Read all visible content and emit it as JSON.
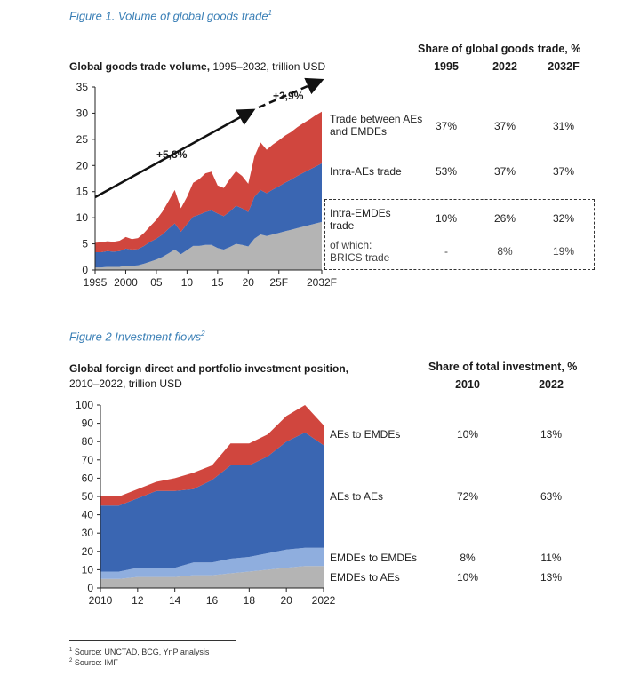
{
  "figure1": {
    "title": "Figure 1. Volume of global goods trade",
    "title_sup": "1",
    "chart_title_bold": "Global goods trade volume,",
    "chart_title_rest": " 1995–2032, trillion USD",
    "share_header": "Share of global goods trade, %",
    "columns": [
      "1995",
      "2022",
      "2032F"
    ],
    "rows": [
      {
        "label": "Trade between AEs and EMDEs",
        "values": [
          "37%",
          "37%",
          "31%"
        ]
      },
      {
        "label": "Intra-AEs trade",
        "values": [
          "53%",
          "37%",
          "37%"
        ]
      },
      {
        "label": "Intra-EMDEs trade",
        "values": [
          "10%",
          "26%",
          "32%"
        ]
      },
      {
        "label": "of which: BRICS trade",
        "values": [
          "-",
          "8%",
          "19%"
        ]
      }
    ],
    "annotations": {
      "growth_1": "+5,8%",
      "growth_2": "+2,9%"
    }
  },
  "figure2": {
    "title": "Figure 2 Investment flows",
    "title_sup": "2",
    "chart_title_bold": "Global foreign direct and portfolio investment position,",
    "chart_title_rest": "2010–2022, trillion USD",
    "share_header": "Share of total investment, %",
    "columns": [
      "2010",
      "2022"
    ],
    "rows": [
      {
        "label": "AEs to EMDEs",
        "values": [
          "10%",
          "13%"
        ]
      },
      {
        "label": "AEs to AEs",
        "values": [
          "72%",
          "63%"
        ]
      },
      {
        "label": "EMDEs to EMDEs",
        "values": [
          "8%",
          "11%"
        ]
      },
      {
        "label": "EMDEs to AEs",
        "values": [
          "10%",
          "13%"
        ]
      }
    ]
  },
  "footnotes": [
    {
      "sup": "1",
      "text": " Source: UNCTAD, BCG, YnP analysis"
    },
    {
      "sup": "2",
      "text": " Source: IMF"
    }
  ],
  "colors": {
    "gray": "#b4b4b4",
    "blue": "#3a66b2",
    "red": "#d0463e",
    "light_blue": "#8faede",
    "accent": "#3a7fb6"
  },
  "chart_data": [
    {
      "type": "area",
      "stacked": true,
      "x": [
        1995,
        1996,
        1997,
        1998,
        1999,
        2000,
        2001,
        2002,
        2003,
        2004,
        2005,
        2006,
        2007,
        2008,
        2009,
        2010,
        2011,
        2012,
        2013,
        2014,
        2015,
        2016,
        2017,
        2018,
        2019,
        2020,
        2021,
        2022,
        2023,
        2024,
        2025,
        2026,
        2027,
        2028,
        2029,
        2030,
        2031,
        2032
      ],
      "xticks": [
        1995,
        2000,
        2005,
        2010,
        2015,
        2020,
        2025,
        2032
      ],
      "xtick_labels": [
        "1995",
        "2000",
        "05",
        "10",
        "15",
        "20",
        "25F",
        "2032F"
      ],
      "ylim": [
        0,
        35
      ],
      "yticks": [
        0,
        5,
        10,
        15,
        20,
        25,
        30,
        35
      ],
      "series": [
        {
          "color": "#b4b4b4",
          "values": [
            0.5,
            0.5,
            0.6,
            0.6,
            0.6,
            0.8,
            0.8,
            0.9,
            1.2,
            1.6,
            2.0,
            2.5,
            3.2,
            3.9,
            3.0,
            3.8,
            4.6,
            4.6,
            4.8,
            4.8,
            4.2,
            3.9,
            4.4,
            5.0,
            4.8,
            4.5,
            6.0,
            6.8,
            6.5,
            6.8,
            7.1,
            7.4,
            7.7,
            8.0,
            8.3,
            8.6,
            8.9,
            9.2
          ]
        },
        {
          "color": "#3a66b2",
          "values": [
            2.9,
            2.9,
            3.0,
            2.9,
            3.0,
            3.3,
            3.1,
            3.1,
            3.4,
            3.8,
            4.0,
            4.3,
            4.7,
            5.0,
            4.3,
            5.0,
            5.6,
            6.0,
            6.3,
            6.6,
            6.6,
            6.4,
            6.8,
            7.3,
            7.0,
            6.6,
            8.0,
            8.5,
            8.2,
            8.6,
            8.9,
            9.3,
            9.6,
            10.0,
            10.3,
            10.6,
            10.9,
            11.2
          ]
        },
        {
          "color": "#d0463e",
          "values": [
            1.8,
            1.9,
            1.9,
            1.9,
            2.0,
            2.2,
            2.0,
            2.1,
            2.5,
            3.0,
            3.6,
            4.4,
            5.3,
            6.4,
            4.5,
            5.2,
            6.5,
            6.8,
            7.4,
            7.4,
            5.4,
            5.4,
            6.2,
            6.6,
            6.2,
            5.4,
            7.7,
            9.1,
            8.3,
            8.6,
            8.8,
            9.0,
            9.1,
            9.3,
            9.5,
            9.6,
            9.8,
            9.9
          ]
        }
      ]
    },
    {
      "type": "area",
      "stacked": true,
      "x": [
        2010,
        2011,
        2012,
        2013,
        2014,
        2015,
        2016,
        2017,
        2018,
        2019,
        2020,
        2021,
        2022
      ],
      "xticks": [
        2010,
        2012,
        2014,
        2016,
        2018,
        2020,
        2022
      ],
      "xtick_labels": [
        "2010",
        "12",
        "14",
        "16",
        "18",
        "20",
        "2022"
      ],
      "ylim": [
        0,
        100
      ],
      "yticks": [
        0,
        10,
        20,
        30,
        40,
        50,
        60,
        70,
        80,
        90,
        100
      ],
      "series": [
        {
          "color": "#b4b4b4",
          "values": [
            5,
            5,
            6,
            6,
            6,
            7,
            7,
            8,
            9,
            10,
            11,
            12,
            12
          ]
        },
        {
          "color": "#8faede",
          "values": [
            4,
            4,
            5,
            5,
            5,
            7,
            7,
            8,
            8,
            9,
            10,
            10,
            10
          ]
        },
        {
          "color": "#3a66b2",
          "values": [
            36,
            36,
            38,
            42,
            42,
            40,
            45,
            51,
            50,
            53,
            59,
            63,
            56
          ]
        },
        {
          "color": "#d0463e",
          "values": [
            5,
            5,
            5,
            5,
            7,
            9,
            8,
            12,
            12,
            12,
            14,
            15,
            11
          ]
        }
      ]
    }
  ]
}
